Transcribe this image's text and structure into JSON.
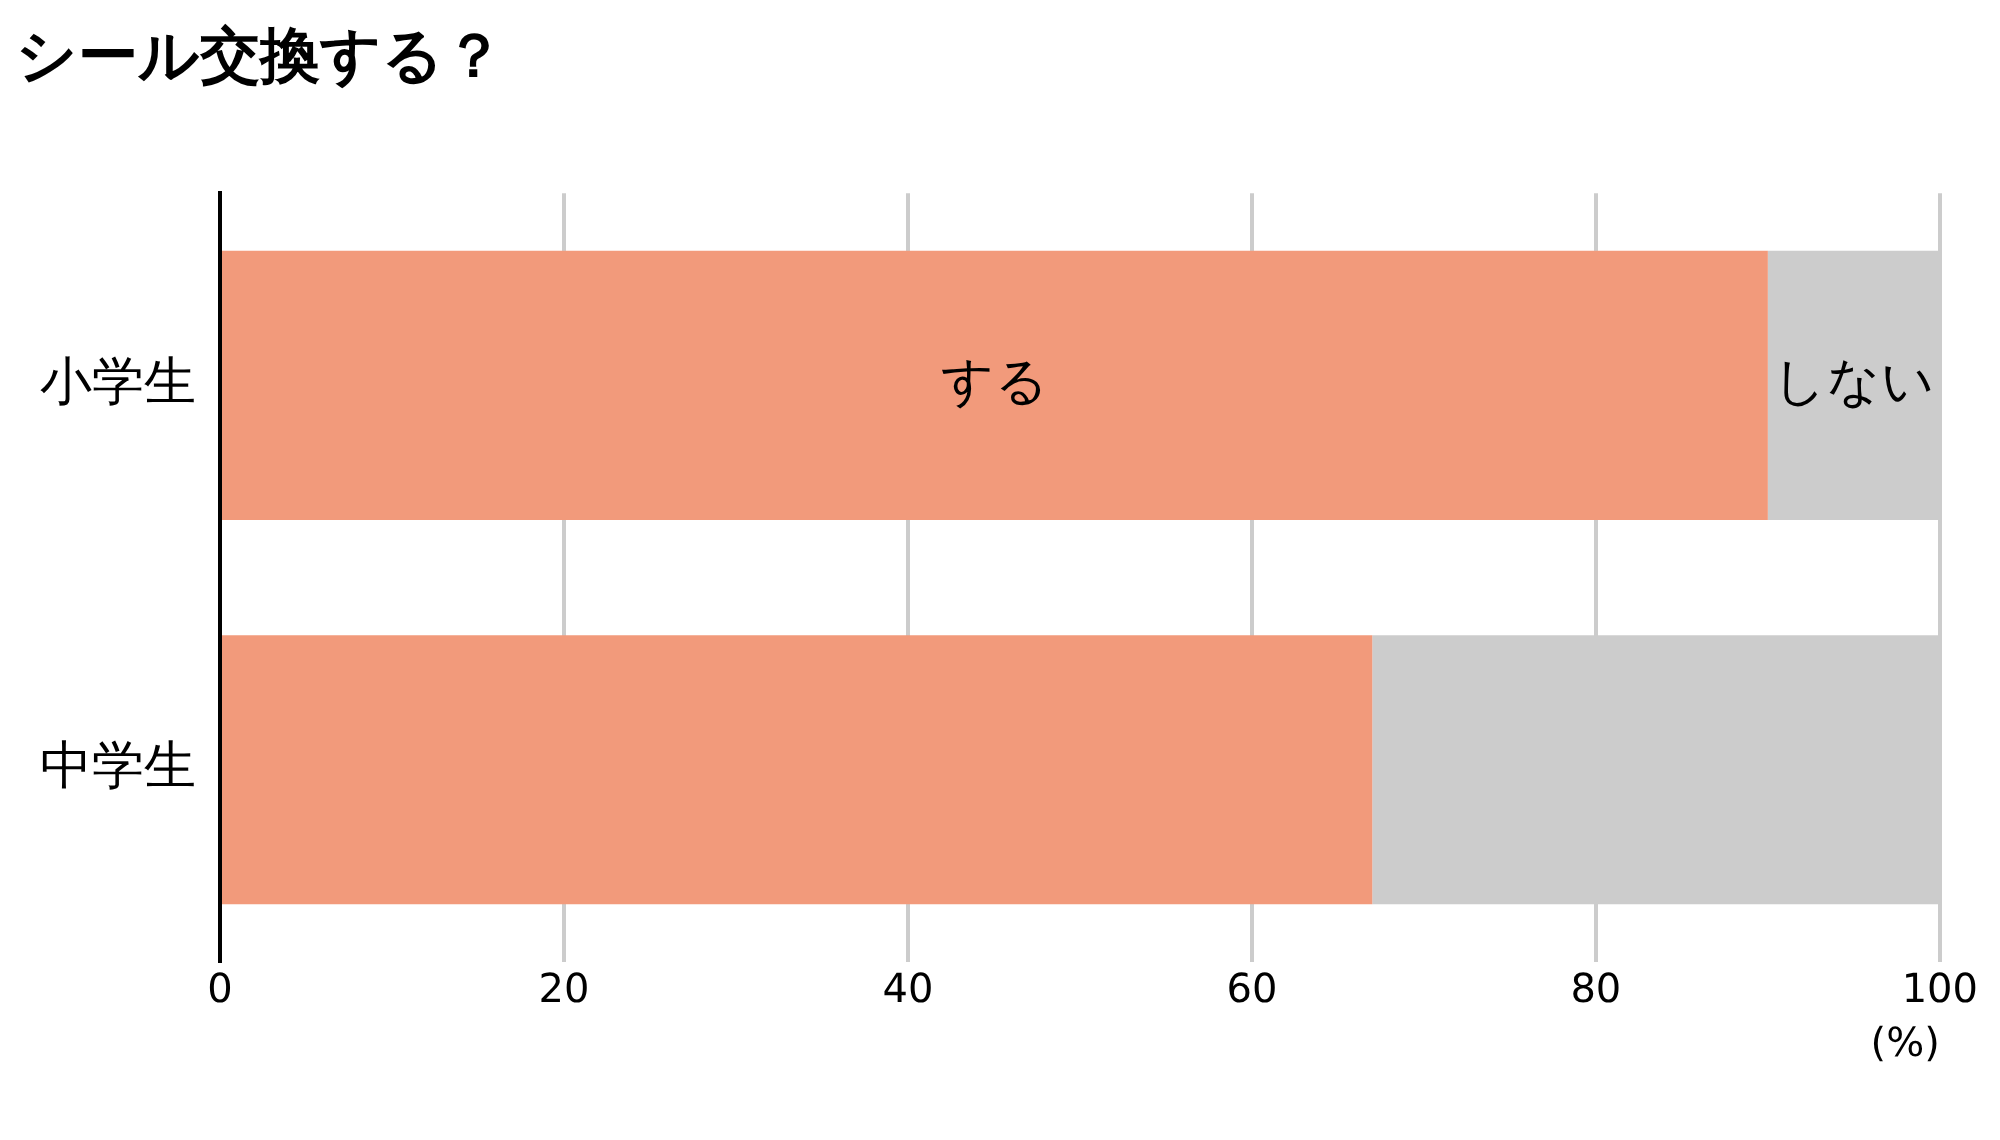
{
  "chart_data": {
    "type": "bar",
    "orientation": "horizontal",
    "stacked": true,
    "title": "シール交換する？",
    "xlabel": "(%)",
    "categories": [
      "小学生",
      "中学生"
    ],
    "series": [
      {
        "name": "する",
        "color": "#f29a7b",
        "values": [
          90,
          67
        ]
      },
      {
        "name": "しない",
        "color": "#cccccc",
        "values": [
          10,
          33
        ]
      }
    ],
    "xlim": [
      0,
      100
    ],
    "xticks": [
      0,
      20,
      40,
      60,
      80,
      100
    ],
    "grid": "x",
    "legend": false
  }
}
